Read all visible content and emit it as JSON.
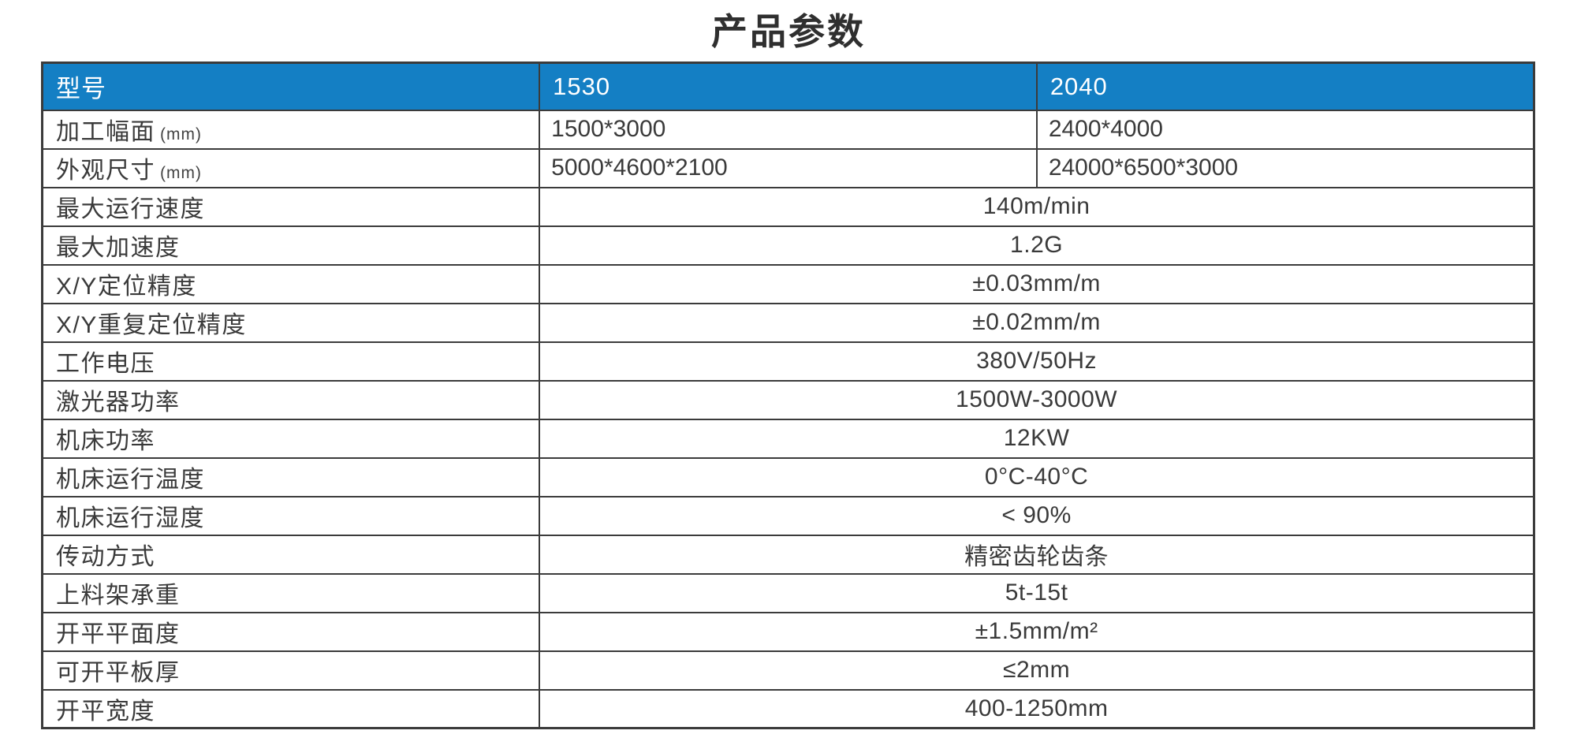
{
  "title": "产品参数",
  "colors": {
    "header_bg": "#147fc4",
    "header_text": "#ffffff",
    "border": "#3b3b3b",
    "body_text": "#3a3a3a"
  },
  "table": {
    "header": {
      "label": "型号",
      "model_a": "1530",
      "model_b": "2040"
    },
    "split_rows": [
      {
        "label": "加工幅面",
        "unit": "(mm)",
        "value_a": "1500*3000",
        "value_b": "2400*4000"
      },
      {
        "label": "外观尺寸",
        "unit": "(mm)",
        "value_a": "5000*4600*2100",
        "value_b": "24000*6500*3000"
      }
    ],
    "merged_rows": [
      {
        "label": "最大运行速度",
        "value": "140m/min"
      },
      {
        "label": "最大加速度",
        "value": "1.2G"
      },
      {
        "label": "X/Y定位精度",
        "value": "±0.03mm/m"
      },
      {
        "label": "X/Y重复定位精度",
        "value": "±0.02mm/m"
      },
      {
        "label": "工作电压",
        "value": "380V/50Hz"
      },
      {
        "label": "激光器功率",
        "value": "1500W-3000W"
      },
      {
        "label": "机床功率",
        "value": "12KW"
      },
      {
        "label": "机床运行温度",
        "value": "0°C-40°C"
      },
      {
        "label": "机床运行湿度",
        "value": "< 90%"
      },
      {
        "label": "传动方式",
        "value": "精密齿轮齿条"
      },
      {
        "label": "上料架承重",
        "value": "5t-15t"
      },
      {
        "label": "开平平面度",
        "value": "±1.5mm/m²"
      },
      {
        "label": "可开平板厚",
        "value": "≤2mm"
      },
      {
        "label": "开平宽度",
        "value": "400-1250mm"
      }
    ]
  }
}
